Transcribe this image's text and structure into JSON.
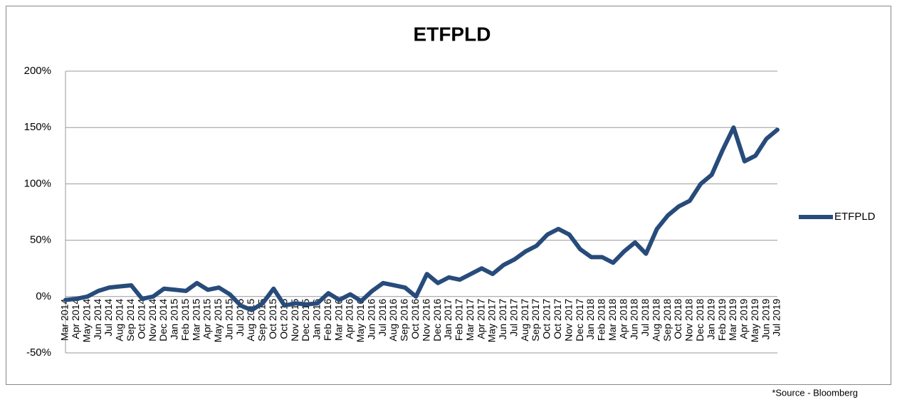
{
  "chart_data": {
    "type": "line",
    "title": "ETFPLD",
    "note": "*Source - Bloomberg",
    "categories": [
      "Mar 2014",
      "Apr 2014",
      "May 2014",
      "Jun 2014",
      "Jul 2014",
      "Aug 2014",
      "Sep 2014",
      "Oct 2014",
      "Nov 2014",
      "Dec 2014",
      "Jan 2015",
      "Feb 2015",
      "Mar 2015",
      "Apr 2015",
      "May 2015",
      "Jun 2015",
      "Jul 2015",
      "Aug 2015",
      "Sep 2015",
      "Oct 2015",
      "Oct 2015",
      "Nov 2015",
      "Dec 2015",
      "Jan 2016",
      "Feb 2016",
      "Mar 2016",
      "Apr 2016",
      "May 2016",
      "Jun 2016",
      "Jul 2016",
      "Aug 2016",
      "Sep 2016",
      "Oct 2016",
      "Nov 2016",
      "Dec 2016",
      "Jan 2017",
      "Feb 2017",
      "Mar 2017",
      "Apr 2017",
      "May 2017",
      "Jun 2017",
      "Jul 2017",
      "Aug 2017",
      "Sep 2017",
      "Oct 2017",
      "Oct 2017",
      "Nov 2017",
      "Dec 2017",
      "Jan 2018",
      "Feb 2018",
      "Mar 2018",
      "Apr 2018",
      "Jun 2018",
      "Jul 2018",
      "Aug 2018",
      "Sep 2018",
      "Oct 2018",
      "Nov 2018",
      "Dec 2018",
      "Jan 2019",
      "Feb 2019",
      "Mar 2019",
      "Apr 2019",
      "May 2019",
      "Jun 2019",
      "Jul 2019"
    ],
    "series": [
      {
        "name": "ETFPLD",
        "color": "#274b7a",
        "values": [
          -3,
          -2,
          0,
          5,
          8,
          9,
          10,
          -2,
          0,
          7,
          6,
          5,
          12,
          6,
          8,
          2,
          -8,
          -12,
          -6,
          7,
          -8,
          -6,
          -7,
          -6,
          3,
          -3,
          2,
          -4,
          5,
          12,
          10,
          8,
          0,
          20,
          12,
          17,
          15,
          20,
          25,
          20,
          28,
          33,
          40,
          45,
          55,
          60,
          55,
          42,
          35,
          35,
          30,
          40,
          48,
          38,
          60,
          72,
          80,
          85,
          100,
          108,
          130,
          150,
          120,
          125,
          140,
          148
        ]
      }
    ],
    "ylim": [
      -50,
      200
    ],
    "yticks": [
      {
        "value": -50,
        "label": "-50%"
      },
      {
        "value": 0,
        "label": "0%"
      },
      {
        "value": 50,
        "label": "50%"
      },
      {
        "value": 100,
        "label": "100%"
      },
      {
        "value": 150,
        "label": "150%"
      },
      {
        "value": 200,
        "label": "200%"
      }
    ],
    "grid": true,
    "legend": "right"
  }
}
